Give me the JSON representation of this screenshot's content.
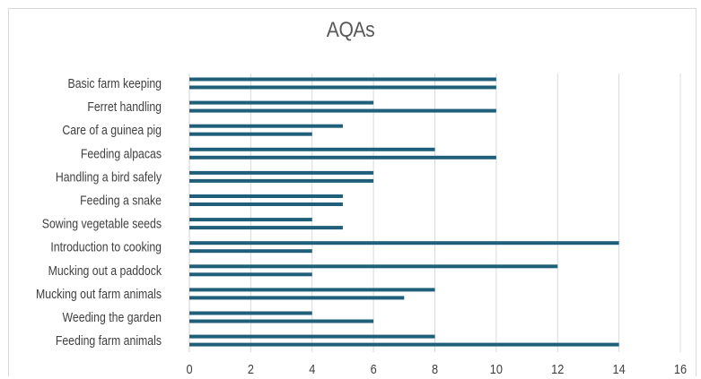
{
  "chart_data": {
    "type": "bar",
    "orientation": "horizontal",
    "title": "AQAs",
    "xlabel": "",
    "ylabel": "",
    "xlim": [
      0,
      16
    ],
    "x_ticks": [
      0,
      2,
      4,
      6,
      8,
      10,
      12,
      14,
      16
    ],
    "grid": true,
    "legend": "none",
    "bar_color": "#1f5f7a",
    "categories": [
      "Basic farm keeping",
      "Ferret handling",
      "Care of a guinea pig",
      "Feeding alpacas",
      "Handling a bird safely",
      "Feeding a snake",
      "Sowing vegetable seeds",
      "Introduction to cooking",
      "Mucking out a paddock",
      "Mucking out farm animals",
      "Weeding the garden",
      "Feeding farm animals"
    ],
    "series": [
      {
        "values": [
          10,
          6,
          5,
          8,
          6,
          5,
          4,
          14,
          12,
          8,
          4,
          8
        ]
      },
      {
        "values": [
          10,
          10,
          4,
          10,
          6,
          5,
          5,
          4,
          4,
          7,
          6,
          14
        ]
      }
    ]
  }
}
